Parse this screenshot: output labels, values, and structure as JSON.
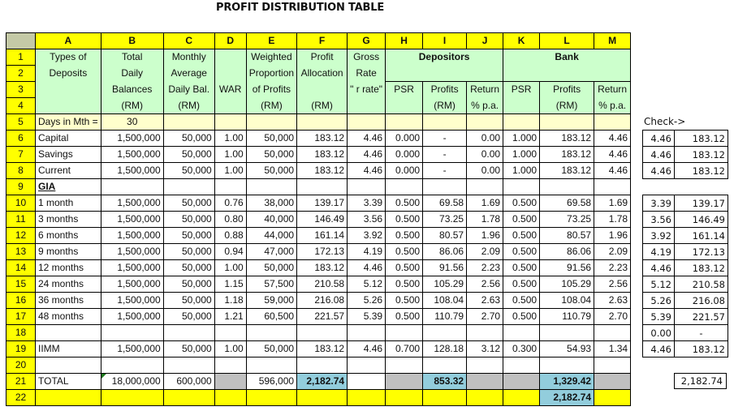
{
  "title": "PROFIT DISTRIBUTION TABLE",
  "columns": [
    "A",
    "B",
    "C",
    "D",
    "E",
    "F",
    "G",
    "H",
    "I",
    "J",
    "K",
    "L",
    "M"
  ],
  "header": {
    "A": [
      "Types of",
      "Deposits",
      "",
      ""
    ],
    "B": [
      "Total",
      "Daily",
      "Balances",
      "(RM)"
    ],
    "C": [
      "Monthly",
      "Average",
      "Daily Bal.",
      "(RM)"
    ],
    "D": [
      "",
      "",
      "WAR",
      ""
    ],
    "E": [
      "Weighted",
      "Proportion",
      "of Profits",
      "(RM)"
    ],
    "F": [
      "Profit",
      "Allocation",
      "",
      "(RM)"
    ],
    "G": [
      "Gross",
      "Rate",
      "\" r rate\"",
      ""
    ],
    "depositors_label": "Depositors",
    "bank_label": "Bank",
    "H": [
      "PSR",
      ""
    ],
    "I": [
      "Profits",
      "(RM)"
    ],
    "J": [
      "Return",
      "% p.a."
    ],
    "K": [
      "PSR",
      ""
    ],
    "L": [
      "Profits",
      "(RM)"
    ],
    "M": [
      "Return",
      "% p.a."
    ]
  },
  "row5": {
    "label": "Days in Mth =",
    "value": "30"
  },
  "rows": [
    {
      "n": "6",
      "A": "Capital",
      "B": "1,500,000",
      "C": "50,000",
      "D": "1.00",
      "E": "50,000",
      "F": "183.12",
      "G": "4.46",
      "H": "0.000",
      "I": "-",
      "J": "0.00",
      "K": "1.000",
      "L": "183.12",
      "M": "4.46"
    },
    {
      "n": "7",
      "A": "Savings",
      "B": "1,500,000",
      "C": "50,000",
      "D": "1.00",
      "E": "50,000",
      "F": "183.12",
      "G": "4.46",
      "H": "0.000",
      "I": "-",
      "J": "0.00",
      "K": "1.000",
      "L": "183.12",
      "M": "4.46"
    },
    {
      "n": "8",
      "A": "Current",
      "B": "1,500,000",
      "C": "50,000",
      "D": "1.00",
      "E": "50,000",
      "F": "183.12",
      "G": "4.46",
      "H": "0.000",
      "I": "-",
      "J": "0.00",
      "K": "1.000",
      "L": "183.12",
      "M": "4.46"
    },
    {
      "n": "9",
      "A": "GIA",
      "B": "",
      "C": "",
      "D": "",
      "E": "",
      "F": "",
      "G": "",
      "H": "",
      "I": "",
      "J": "",
      "K": "",
      "L": "",
      "M": ""
    },
    {
      "n": "10",
      "A": "1 month",
      "B": "1,500,000",
      "C": "50,000",
      "D": "0.76",
      "E": "38,000",
      "F": "139.17",
      "G": "3.39",
      "H": "0.500",
      "I": "69.58",
      "J": "1.69",
      "K": "0.500",
      "L": "69.58",
      "M": "1.69"
    },
    {
      "n": "11",
      "A": "3 months",
      "B": "1,500,000",
      "C": "50,000",
      "D": "0.80",
      "E": "40,000",
      "F": "146.49",
      "G": "3.56",
      "H": "0.500",
      "I": "73.25",
      "J": "1.78",
      "K": "0.500",
      "L": "73.25",
      "M": "1.78"
    },
    {
      "n": "12",
      "A": "6 months",
      "B": "1,500,000",
      "C": "50,000",
      "D": "0.88",
      "E": "44,000",
      "F": "161.14",
      "G": "3.92",
      "H": "0.500",
      "I": "80.57",
      "J": "1.96",
      "K": "0.500",
      "L": "80.57",
      "M": "1.96"
    },
    {
      "n": "13",
      "A": "9 months",
      "B": "1,500,000",
      "C": "50,000",
      "D": "0.94",
      "E": "47,000",
      "F": "172.13",
      "G": "4.19",
      "H": "0.500",
      "I": "86.06",
      "J": "2.09",
      "K": "0.500",
      "L": "86.06",
      "M": "2.09"
    },
    {
      "n": "14",
      "A": "12 months",
      "B": "1,500,000",
      "C": "50,000",
      "D": "1.00",
      "E": "50,000",
      "F": "183.12",
      "G": "4.46",
      "H": "0.500",
      "I": "91.56",
      "J": "2.23",
      "K": "0.500",
      "L": "91.56",
      "M": "2.23"
    },
    {
      "n": "15",
      "A": "24 months",
      "B": "1,500,000",
      "C": "50,000",
      "D": "1.15",
      "E": "57,500",
      "F": "210.58",
      "G": "5.12",
      "H": "0.500",
      "I": "105.29",
      "J": "2.56",
      "K": "0.500",
      "L": "105.29",
      "M": "2.56"
    },
    {
      "n": "16",
      "A": "36 months",
      "B": "1,500,000",
      "C": "50,000",
      "D": "1.18",
      "E": "59,000",
      "F": "216.08",
      "G": "5.26",
      "H": "0.500",
      "I": "108.04",
      "J": "2.63",
      "K": "0.500",
      "L": "108.04",
      "M": "2.63"
    },
    {
      "n": "17",
      "A": "48 months",
      "B": "1,500,000",
      "C": "50,000",
      "D": "1.21",
      "E": "60,500",
      "F": "221.57",
      "G": "5.39",
      "H": "0.500",
      "I": "110.79",
      "J": "2.70",
      "K": "0.500",
      "L": "110.79",
      "M": "2.70"
    },
    {
      "n": "18",
      "A": "",
      "B": "",
      "C": "",
      "D": "",
      "E": "",
      "F": "",
      "G": "",
      "H": "",
      "I": "",
      "J": "",
      "K": "",
      "L": "",
      "M": ""
    },
    {
      "n": "19",
      "A": "IIMM",
      "B": "1,500,000",
      "C": "50,000",
      "D": "1.00",
      "E": "50,000",
      "F": "183.12",
      "G": "4.46",
      "H": "0.700",
      "I": "128.18",
      "J": "3.12",
      "K": "0.300",
      "L": "54.93",
      "M": "1.34"
    },
    {
      "n": "20",
      "A": "",
      "B": "",
      "C": "",
      "D": "",
      "E": "",
      "F": "",
      "G": "",
      "H": "",
      "I": "",
      "J": "",
      "K": "",
      "L": "",
      "M": ""
    }
  ],
  "total_row": {
    "n": "21",
    "A": "TOTAL",
    "B": "18,000,000",
    "C": "600,000",
    "E": "596,000",
    "F": "2,182.74",
    "I": "853.32",
    "L": "1,329.42"
  },
  "row22": {
    "n": "22",
    "L": "2,182.74"
  },
  "check": {
    "label": "Check->",
    "group1": [
      [
        "4.46",
        "183.12"
      ],
      [
        "4.46",
        "183.12"
      ],
      [
        "4.46",
        "183.12"
      ]
    ],
    "group2": [
      [
        "3.39",
        "139.17"
      ],
      [
        "3.56",
        "146.49"
      ],
      [
        "3.92",
        "161.14"
      ],
      [
        "4.19",
        "172.13"
      ],
      [
        "4.46",
        "183.12"
      ],
      [
        "5.12",
        "210.58"
      ],
      [
        "5.26",
        "216.08"
      ],
      [
        "5.39",
        "221.57"
      ],
      [
        "0.00",
        "-"
      ],
      [
        "4.46",
        "183.12"
      ]
    ],
    "total": "2,182.74"
  },
  "colors": {
    "row_header": "#ffff00",
    "header_fill": "#ccffcc",
    "days_row": "#ffffcc",
    "total_highlight": "#92cddc",
    "inactive": "#c0c0c0"
  }
}
